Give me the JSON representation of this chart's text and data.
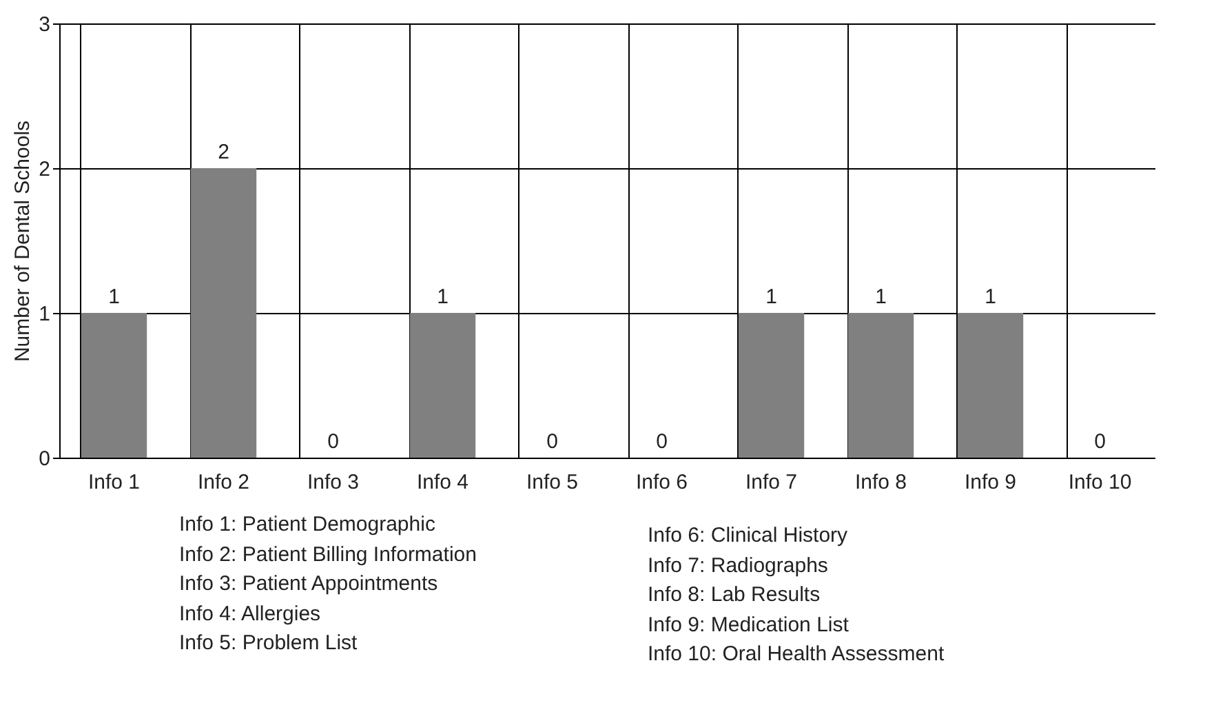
{
  "chart_data": {
    "type": "bar",
    "categories": [
      "Info 1",
      "Info 2",
      "Info 3",
      "Info 4",
      "Info 5",
      "Info 6",
      "Info 7",
      "Info 8",
      "Info 9",
      "Info 10"
    ],
    "values": [
      1,
      2,
      0,
      1,
      0,
      0,
      1,
      1,
      1,
      0
    ],
    "color": "#808080",
    "ylabel": "Number of Dental Schools",
    "ylim": [
      0,
      3
    ],
    "yticks": [
      0,
      1,
      2,
      3
    ],
    "grid": true,
    "data_labels": true,
    "annotations": [
      "Info 1: Patient Demographic",
      "Info 2: Patient Billing Information",
      "Info 3: Patient Appointments",
      "Info 4: Allergies",
      "Info 5: Problem List",
      "Info 6: Clinical History",
      "Info 7: Radiographs",
      "Info 8: Lab Results",
      "Info 9: Medication List",
      "Info 10: Oral Health Assessment"
    ]
  }
}
